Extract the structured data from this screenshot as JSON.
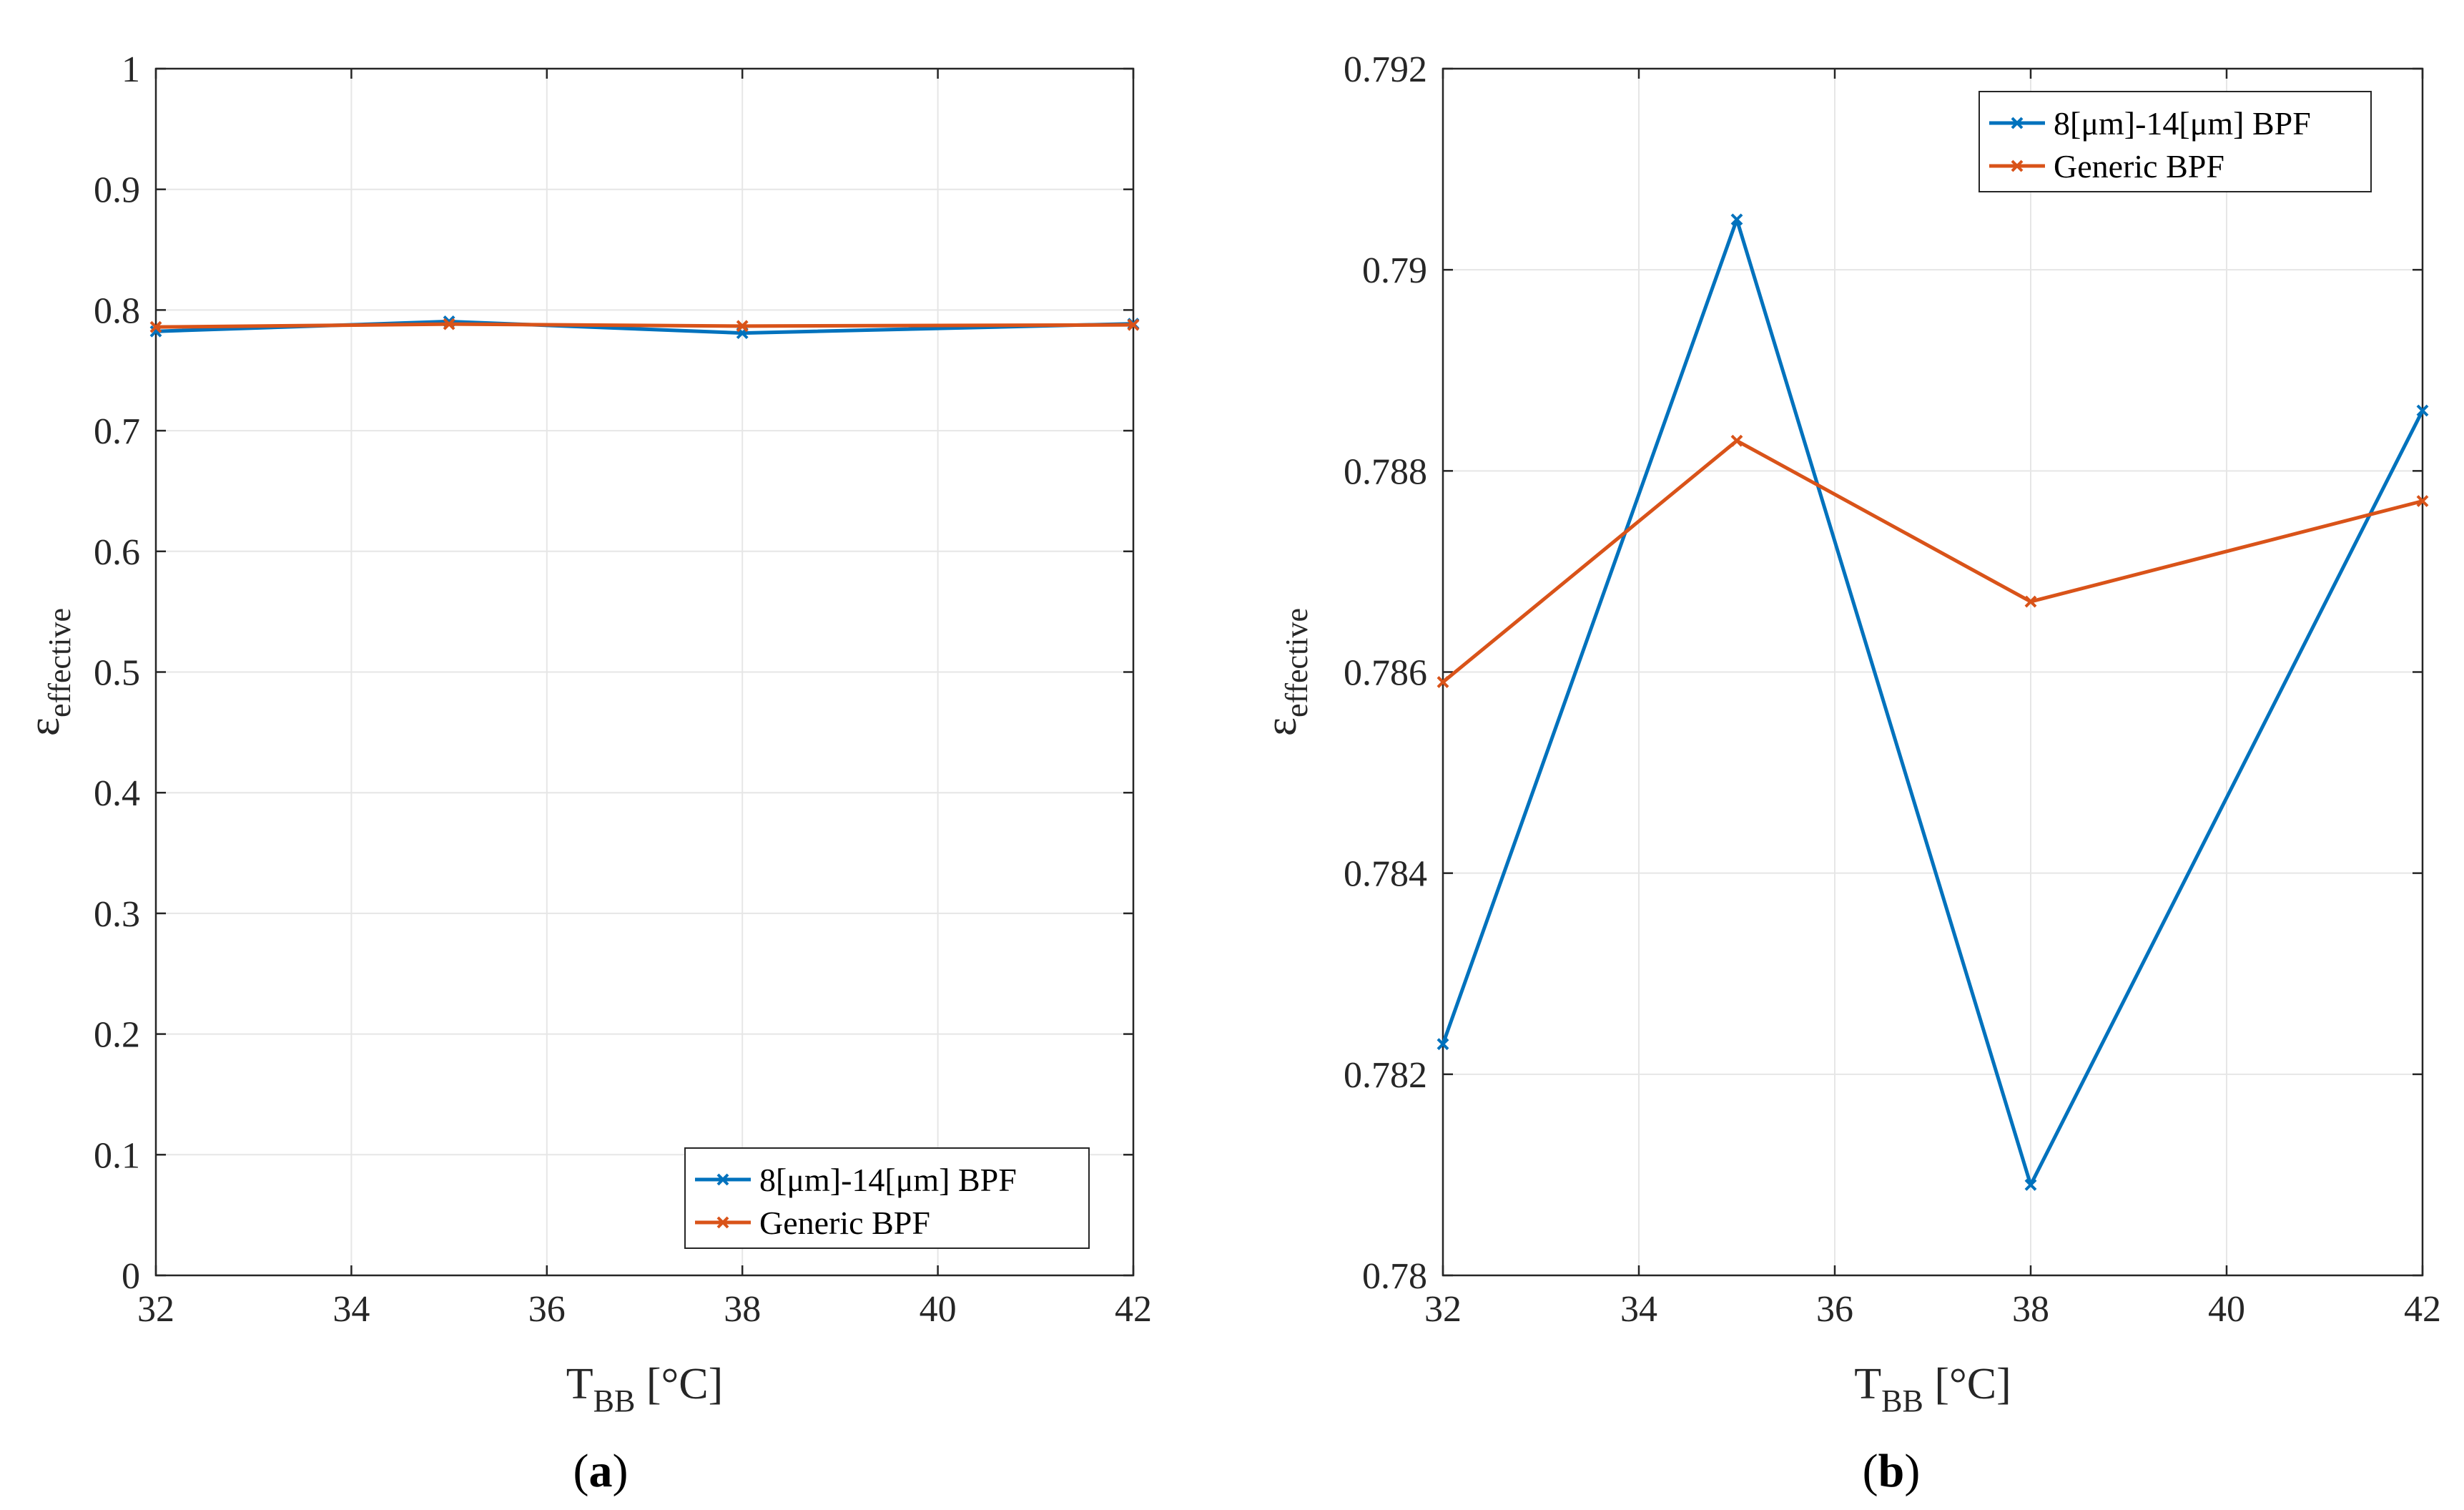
{
  "chart_data": [
    {
      "type": "line",
      "panel_label": "a",
      "xlabel": "T",
      "xlabel_sub": "BB",
      "xlabel_unit": " [°C]",
      "ylabel": "ε",
      "ylabel_sub": "effective",
      "x": [
        32,
        35,
        38,
        42
      ],
      "xlim": [
        32,
        42
      ],
      "ylim": [
        0,
        1
      ],
      "xticks": [
        32,
        34,
        36,
        38,
        40,
        42
      ],
      "xtick_labels": [
        "32",
        "34",
        "36",
        "38",
        "40",
        "42"
      ],
      "yticks": [
        0,
        0.1,
        0.2,
        0.3,
        0.4,
        0.5,
        0.6,
        0.7,
        0.8,
        0.9,
        1
      ],
      "ytick_labels": [
        "0",
        "0.1",
        "0.2",
        "0.3",
        "0.4",
        "0.5",
        "0.6",
        "0.7",
        "0.8",
        "0.9",
        "1"
      ],
      "grid": true,
      "legend_position": "bottom-right",
      "series": [
        {
          "name": "8[μm]-14[μm] BPF",
          "color": "#0072BD",
          "values": [
            0.7823,
            0.7905,
            0.7809,
            0.7886
          ]
        },
        {
          "name": "Generic BPF",
          "color": "#D95319",
          "values": [
            0.7859,
            0.7883,
            0.7867,
            0.7877
          ]
        }
      ]
    },
    {
      "type": "line",
      "panel_label": "b",
      "xlabel": "T",
      "xlabel_sub": "BB",
      "xlabel_unit": " [°C]",
      "ylabel": "ε",
      "ylabel_sub": "effective",
      "x": [
        32,
        35,
        38,
        42
      ],
      "xlim": [
        32,
        42
      ],
      "ylim": [
        0.78,
        0.792
      ],
      "xticks": [
        32,
        34,
        36,
        38,
        40,
        42
      ],
      "xtick_labels": [
        "32",
        "34",
        "36",
        "38",
        "40",
        "42"
      ],
      "yticks": [
        0.78,
        0.782,
        0.784,
        0.786,
        0.788,
        0.79,
        0.792
      ],
      "ytick_labels": [
        "0.78",
        "0.782",
        "0.784",
        "0.786",
        "0.788",
        "0.79",
        "0.792"
      ],
      "grid": true,
      "legend_position": "top-right",
      "series": [
        {
          "name": "8[μm]-14[μm] BPF",
          "color": "#0072BD",
          "values": [
            0.7823,
            0.7905,
            0.7809,
            0.7886
          ]
        },
        {
          "name": "Generic BPF",
          "color": "#D95319",
          "values": [
            0.7859,
            0.7883,
            0.7867,
            0.7877
          ]
        }
      ]
    }
  ]
}
